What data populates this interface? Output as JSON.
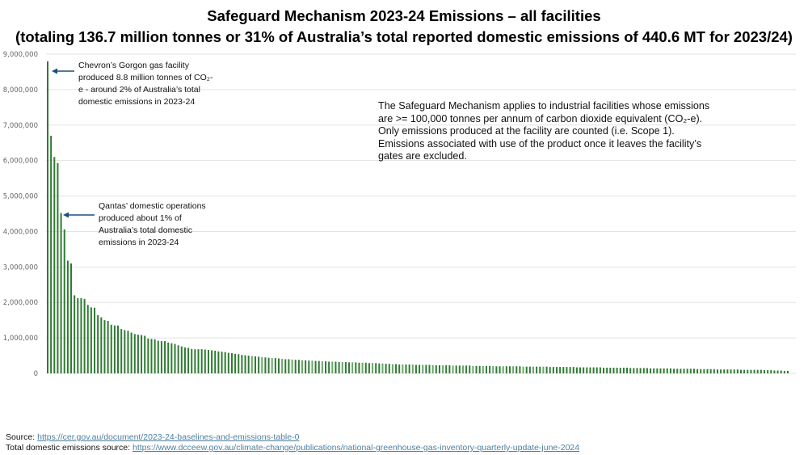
{
  "chart_data": {
    "type": "bar",
    "title": "Safeguard Mechanism 2023-24 Emissions – all facilities",
    "subtitle": "(totaling 136.7 million tonnes or 31% of Australia’s total reported domestic emissions of 440.6 MT for 2023/24)",
    "xlabel": "",
    "ylabel": "",
    "ylim": [
      0,
      9000000
    ],
    "yticks": [
      "0",
      "1,000,000",
      "2,000,000",
      "3,000,000",
      "4,000,000",
      "5,000,000",
      "6,000,000",
      "7,000,000",
      "8,000,000",
      "9,000,000"
    ],
    "grid": true,
    "bar_color": "#2f7a32",
    "values": [
      8800000.0,
      6700000.0,
      6100000.0,
      5930000.0,
      4520000.0,
      4060000.0,
      3180000.0,
      3100000.0,
      2200000.0,
      2120000.0,
      2120000.0,
      2100000.0,
      1930000.0,
      1860000.0,
      1850000.0,
      1640000.0,
      1580000.0,
      1500000.0,
      1480000.0,
      1370000.0,
      1350000.0,
      1350000.0,
      1250000.0,
      1220000.0,
      1200000.0,
      1150000.0,
      1110000.0,
      1090000.0,
      1080000.0,
      1060000.0,
      980000.0,
      970000.0,
      960000.0,
      920000.0,
      910000.0,
      910000.0,
      870000.0,
      850000.0,
      830000.0,
      790000.0,
      760000.0,
      730000.0,
      720000.0,
      690000.0,
      680000.0,
      680000.0,
      680000.0,
      670000.0,
      660000.0,
      650000.0,
      640000.0,
      620000.0,
      610000.0,
      600000.0,
      580000.0,
      570000.0,
      550000.0,
      540000.0,
      520000.0,
      510000.0,
      500000.0,
      490000.0,
      480000.0,
      470000.0,
      460000.0,
      450000.0,
      440000.0,
      430000.0,
      430000.0,
      420000.0,
      410000.0,
      400000.0,
      400000.0,
      390000.0,
      380000.0,
      380000.0,
      370000.0,
      370000.0,
      360000.0,
      360000.0,
      350000.0,
      350000.0,
      340000.0,
      340000.0,
      330000.0,
      330000.0,
      330000.0,
      320000.0,
      320000.0,
      320000.0,
      310000.0,
      310000.0,
      310000.0,
      300000.0,
      300000.0,
      300000.0,
      290000.0,
      290000.0,
      290000.0,
      280000.0,
      280000.0,
      270000.0,
      270000.0,
      260000.0,
      260000.0,
      250000.0,
      250000.0,
      250000.0,
      250000.0,
      250000.0,
      240000.0,
      240000.0,
      240000.0,
      240000.0,
      240000.0,
      230000.0,
      230000.0,
      230000.0,
      230000.0,
      230000.0,
      230000.0,
      220000.0,
      220000.0,
      220000.0,
      220000.0,
      220000.0,
      220000.0,
      210000.0,
      210000.0,
      210000.0,
      210000.0,
      210000.0,
      210000.0,
      210000.0,
      200000.0,
      200000.0,
      200000.0,
      200000.0,
      200000.0,
      200000.0,
      200000.0,
      200000.0,
      190000.0,
      190000.0,
      190000.0,
      190000.0,
      190000.0,
      190000.0,
      190000.0,
      190000.0,
      180000.0,
      180000.0,
      180000.0,
      180000.0,
      180000.0,
      180000.0,
      180000.0,
      180000.0,
      170000.0,
      170000.0,
      170000.0,
      170000.0,
      170000.0,
      170000.0,
      170000.0,
      170000.0,
      160000.0,
      160000.0,
      160000.0,
      160000.0,
      160000.0,
      160000.0,
      160000.0,
      160000.0,
      150000.0,
      150000.0,
      150000.0,
      150000.0,
      150000.0,
      150000.0,
      140000.0,
      140000.0,
      140000.0,
      140000.0,
      140000.0,
      140000.0,
      140000.0,
      130000.0,
      130000.0,
      130000.0,
      130000.0,
      130000.0,
      130000.0,
      130000.0,
      120000.0,
      120000.0,
      120000.0,
      120000.0,
      120000.0,
      120000.0,
      110000.0,
      110000.0,
      110000.0,
      110000.0,
      110000.0,
      110000.0,
      110000.0,
      100000.0,
      100000.0,
      100000.0,
      100000.0,
      100000.0,
      100000.0,
      100000.0,
      90000.0,
      90000.0,
      90000.0,
      80000.0,
      80000.0,
      80000.0,
      70000.0,
      70000.0
    ],
    "annotations": {
      "gorgon": "Chevron’s Gorgon gas facility produced 8.8 million tonnes of CO₂-e - around 2% of Australia’s total domestic emissions in 2023-24",
      "qantas": "Qantas’ domestic operations produced about 1% of Australia’s total domestic emissions in 2023-24",
      "main": "The Safeguard Mechanism applies to industrial facilities whose emissions are >= 100,000 tonnes per annum of carbon dioxide equivalent (CO₂-e). Only emissions produced at the facility are counted (i.e. Scope 1). Emissions associated with use of the product once it leaves the facility’s gates are excluded."
    }
  },
  "footer": {
    "source_label": "Source: ",
    "source_url": "https://cer.gov.au/document/2023-24-baselines-and-emissions-table-0",
    "total_label": "Total domestic emissions source: ",
    "total_url": "https://www.dcceew.gov.au/climate-change/publications/national-greenhouse-gas-inventory-quarterly-update-june-2024"
  }
}
